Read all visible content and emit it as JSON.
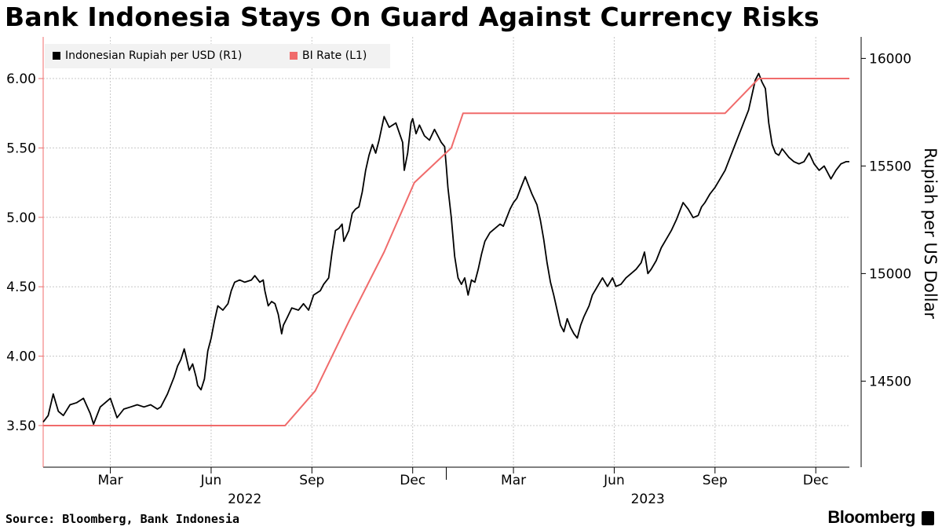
{
  "header": {
    "title": "Bank Indonesia Stays On Guard Against Currency Risks"
  },
  "footer": {
    "source": "Source: Bloomberg, Bank Indonesia",
    "brand": "Bloomberg"
  },
  "colors": {
    "rupiah": "#000000",
    "bi_rate": "#f06b6b",
    "grid": "#c8c8c8",
    "axis": "#000000",
    "legend_bg": "#f2f2f2"
  },
  "chart_data": {
    "type": "line",
    "title": "Bank Indonesia Stays On Guard Against Currency Risks",
    "legend_position": "top-left",
    "x_axis": {
      "range": [
        0,
        24
      ],
      "unit": "months since Jan 1, 2022",
      "ticks": [
        {
          "x": 2,
          "label": "Mar"
        },
        {
          "x": 5,
          "label": "Jun"
        },
        {
          "x": 8,
          "label": "Sep"
        },
        {
          "x": 11,
          "label": "Dec"
        },
        {
          "x": 14,
          "label": "Mar"
        },
        {
          "x": 17,
          "label": "Jun"
        },
        {
          "x": 20,
          "label": "Sep"
        },
        {
          "x": 23,
          "label": "Dec"
        }
      ],
      "years": [
        {
          "x": 6.0,
          "label": "2022"
        },
        {
          "x": 18.0,
          "label": "2023"
        }
      ]
    },
    "y_left": {
      "label": "",
      "range": [
        3.2,
        6.3
      ],
      "ticks": [
        3.5,
        4.0,
        4.5,
        5.0,
        5.5,
        6.0
      ],
      "tick_labels": [
        "3.50",
        "4.00",
        "4.50",
        "5.00",
        "5.50",
        "6.00"
      ]
    },
    "y_right": {
      "label": "Rupiah per US Dollar",
      "range": [
        14100,
        16100
      ],
      "ticks": [
        14500,
        15000,
        15500,
        16000
      ],
      "tick_labels": [
        "14500",
        "15000",
        "15500",
        "16000"
      ]
    },
    "series": [
      {
        "name": "Indonesian Rupiah per USD (R1)",
        "axis": "right",
        "color": "#000000",
        "points": [
          [
            0.0,
            14310
          ],
          [
            0.15,
            14340
          ],
          [
            0.3,
            14440
          ],
          [
            0.45,
            14360
          ],
          [
            0.6,
            14340
          ],
          [
            0.8,
            14390
          ],
          [
            1.0,
            14400
          ],
          [
            1.2,
            14420
          ],
          [
            1.4,
            14350
          ],
          [
            1.5,
            14300
          ],
          [
            1.7,
            14380
          ],
          [
            2.0,
            14420
          ],
          [
            2.2,
            14330
          ],
          [
            2.4,
            14370
          ],
          [
            2.6,
            14380
          ],
          [
            2.8,
            14390
          ],
          [
            3.0,
            14380
          ],
          [
            3.2,
            14390
          ],
          [
            3.4,
            14370
          ],
          [
            3.5,
            14380
          ],
          [
            3.7,
            14440
          ],
          [
            3.9,
            14520
          ],
          [
            4.0,
            14570
          ],
          [
            4.1,
            14600
          ],
          [
            4.2,
            14650
          ],
          [
            4.35,
            14550
          ],
          [
            4.45,
            14580
          ],
          [
            4.55,
            14520
          ],
          [
            4.6,
            14480
          ],
          [
            4.7,
            14460
          ],
          [
            4.8,
            14510
          ],
          [
            4.9,
            14640
          ],
          [
            5.0,
            14700
          ],
          [
            5.1,
            14780
          ],
          [
            5.2,
            14850
          ],
          [
            5.35,
            14830
          ],
          [
            5.5,
            14860
          ],
          [
            5.6,
            14920
          ],
          [
            5.7,
            14960
          ],
          [
            5.85,
            14970
          ],
          [
            6.0,
            14960
          ],
          [
            6.2,
            14970
          ],
          [
            6.3,
            14990
          ],
          [
            6.45,
            14960
          ],
          [
            6.55,
            14970
          ],
          [
            6.6,
            14920
          ],
          [
            6.7,
            14850
          ],
          [
            6.8,
            14870
          ],
          [
            6.9,
            14860
          ],
          [
            7.0,
            14810
          ],
          [
            7.1,
            14720
          ],
          [
            7.15,
            14760
          ],
          [
            7.25,
            14790
          ],
          [
            7.4,
            14840
          ],
          [
            7.6,
            14830
          ],
          [
            7.75,
            14860
          ],
          [
            7.9,
            14830
          ],
          [
            8.05,
            14900
          ],
          [
            8.25,
            14920
          ],
          [
            8.35,
            14950
          ],
          [
            8.5,
            14980
          ],
          [
            8.6,
            15100
          ],
          [
            8.7,
            15200
          ],
          [
            8.8,
            15210
          ],
          [
            8.9,
            15230
          ],
          [
            8.95,
            15150
          ],
          [
            9.1,
            15200
          ],
          [
            9.2,
            15280
          ],
          [
            9.3,
            15300
          ],
          [
            9.4,
            15310
          ],
          [
            9.5,
            15380
          ],
          [
            9.6,
            15480
          ],
          [
            9.7,
            15550
          ],
          [
            9.8,
            15600
          ],
          [
            9.9,
            15560
          ],
          [
            10.0,
            15620
          ],
          [
            10.15,
            15730
          ],
          [
            10.3,
            15680
          ],
          [
            10.5,
            15700
          ],
          [
            10.7,
            15610
          ],
          [
            10.75,
            15480
          ],
          [
            10.85,
            15560
          ],
          [
            10.95,
            15700
          ],
          [
            11.0,
            15720
          ],
          [
            11.1,
            15650
          ],
          [
            11.2,
            15690
          ],
          [
            11.35,
            15640
          ],
          [
            11.5,
            15620
          ],
          [
            11.65,
            15670
          ],
          [
            11.75,
            15640
          ],
          [
            11.85,
            15610
          ],
          [
            11.95,
            15590
          ],
          [
            12.0,
            15500
          ],
          [
            12.05,
            15400
          ],
          [
            12.15,
            15260
          ],
          [
            12.25,
            15080
          ],
          [
            12.35,
            14980
          ],
          [
            12.45,
            14950
          ],
          [
            12.55,
            14980
          ],
          [
            12.65,
            14900
          ],
          [
            12.75,
            14970
          ],
          [
            12.85,
            14960
          ],
          [
            12.95,
            15020
          ],
          [
            13.05,
            15090
          ],
          [
            13.15,
            15150
          ],
          [
            13.3,
            15190
          ],
          [
            13.45,
            15210
          ],
          [
            13.6,
            15230
          ],
          [
            13.7,
            15220
          ],
          [
            13.8,
            15260
          ],
          [
            13.9,
            15300
          ],
          [
            14.0,
            15330
          ],
          [
            14.1,
            15350
          ],
          [
            14.2,
            15390
          ],
          [
            14.35,
            15450
          ],
          [
            14.45,
            15410
          ],
          [
            14.55,
            15370
          ],
          [
            14.7,
            15320
          ],
          [
            14.8,
            15250
          ],
          [
            14.9,
            15160
          ],
          [
            15.0,
            15050
          ],
          [
            15.1,
            14960
          ],
          [
            15.2,
            14900
          ],
          [
            15.3,
            14830
          ],
          [
            15.4,
            14760
          ],
          [
            15.5,
            14730
          ],
          [
            15.6,
            14790
          ],
          [
            15.7,
            14750
          ],
          [
            15.8,
            14720
          ],
          [
            15.9,
            14700
          ],
          [
            16.0,
            14760
          ],
          [
            16.1,
            14800
          ],
          [
            16.25,
            14850
          ],
          [
            16.35,
            14900
          ],
          [
            16.5,
            14940
          ],
          [
            16.65,
            14980
          ],
          [
            16.8,
            14940
          ],
          [
            16.95,
            14980
          ],
          [
            17.05,
            14940
          ],
          [
            17.2,
            14950
          ],
          [
            17.35,
            14980
          ],
          [
            17.5,
            15000
          ],
          [
            17.65,
            15020
          ],
          [
            17.8,
            15050
          ],
          [
            17.9,
            15100
          ],
          [
            18.0,
            15000
          ],
          [
            18.1,
            15020
          ],
          [
            18.25,
            15060
          ],
          [
            18.4,
            15120
          ],
          [
            18.55,
            15160
          ],
          [
            18.7,
            15200
          ],
          [
            18.85,
            15250
          ],
          [
            18.95,
            15290
          ],
          [
            19.05,
            15330
          ],
          [
            19.2,
            15300
          ],
          [
            19.35,
            15260
          ],
          [
            19.5,
            15270
          ],
          [
            19.6,
            15310
          ],
          [
            19.7,
            15330
          ],
          [
            19.85,
            15370
          ],
          [
            20.0,
            15400
          ],
          [
            20.15,
            15440
          ],
          [
            20.3,
            15480
          ],
          [
            20.45,
            15540
          ],
          [
            20.6,
            15600
          ],
          [
            20.75,
            15660
          ],
          [
            20.85,
            15700
          ],
          [
            21.0,
            15760
          ],
          [
            21.1,
            15830
          ],
          [
            21.2,
            15900
          ],
          [
            21.3,
            15930
          ],
          [
            21.4,
            15890
          ],
          [
            21.5,
            15860
          ],
          [
            21.6,
            15700
          ],
          [
            21.7,
            15600
          ],
          [
            21.8,
            15560
          ],
          [
            21.9,
            15550
          ],
          [
            22.0,
            15580
          ],
          [
            22.1,
            15560
          ],
          [
            22.2,
            15540
          ],
          [
            22.35,
            15520
          ],
          [
            22.5,
            15510
          ],
          [
            22.65,
            15520
          ],
          [
            22.8,
            15560
          ],
          [
            22.95,
            15510
          ],
          [
            23.1,
            15480
          ],
          [
            23.25,
            15500
          ],
          [
            23.35,
            15470
          ],
          [
            23.45,
            15440
          ],
          [
            23.6,
            15480
          ],
          [
            23.75,
            15510
          ],
          [
            23.9,
            15520
          ],
          [
            24.0,
            15520
          ]
        ]
      },
      {
        "name": "BI Rate (L1)",
        "axis": "left",
        "color": "#f06b6b",
        "points": [
          [
            0.0,
            3.5
          ],
          [
            7.2,
            3.5
          ],
          [
            8.1,
            3.75
          ],
          [
            9.1,
            4.25
          ],
          [
            10.15,
            4.75
          ],
          [
            11.05,
            5.25
          ],
          [
            12.15,
            5.5
          ],
          [
            12.5,
            5.75
          ],
          [
            19.5,
            5.75
          ],
          [
            20.3,
            5.75
          ],
          [
            21.3,
            6.0
          ],
          [
            24.0,
            6.0
          ]
        ]
      }
    ]
  }
}
